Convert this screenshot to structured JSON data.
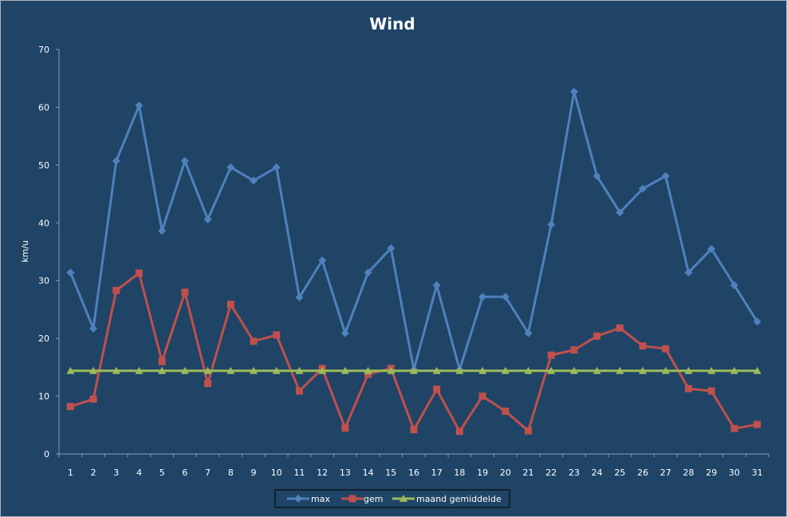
{
  "chart_data": {
    "type": "line",
    "title": "Wind",
    "xlabel": "",
    "ylabel": "km/u",
    "ylim": [
      0,
      70
    ],
    "yticks": [
      0,
      10,
      20,
      30,
      40,
      50,
      60,
      70
    ],
    "grid": false,
    "legend_position": "bottom",
    "categories": [
      "1",
      "2",
      "3",
      "4",
      "5",
      "6",
      "7",
      "8",
      "9",
      "10",
      "11",
      "12",
      "13",
      "14",
      "15",
      "16",
      "17",
      "18",
      "19",
      "20",
      "21",
      "22",
      "23",
      "24",
      "25",
      "26",
      "27",
      "28",
      "29",
      "30",
      "31"
    ],
    "series": [
      {
        "name": "max",
        "color": "#4f81bd",
        "marker": "diamond",
        "values": [
          31.4,
          21.7,
          50.7,
          60.3,
          38.6,
          50.7,
          40.6,
          49.6,
          47.3,
          49.6,
          27.1,
          33.5,
          20.9,
          31.4,
          35.6,
          14.6,
          29.2,
          14.6,
          27.2,
          27.2,
          20.9,
          39.7,
          62.7,
          48.1,
          41.8,
          45.9,
          48.1,
          31.4,
          35.5,
          29.2,
          22.9
        ]
      },
      {
        "name": "gem",
        "color": "#c0504d",
        "marker": "square",
        "values": [
          8.2,
          9.5,
          28.3,
          31.3,
          16.0,
          28.0,
          12.2,
          25.9,
          19.5,
          20.6,
          10.9,
          14.8,
          4.5,
          13.8,
          14.8,
          4.2,
          11.2,
          3.9,
          10.0,
          7.4,
          4.0,
          17.1,
          18.0,
          20.4,
          21.8,
          18.7,
          18.2,
          11.3,
          10.9,
          4.4,
          5.1
        ]
      },
      {
        "name": "maand gemiddelde",
        "color": "#9bbb59",
        "marker": "triangle",
        "values": [
          14.4,
          14.4,
          14.4,
          14.4,
          14.4,
          14.4,
          14.4,
          14.4,
          14.4,
          14.4,
          14.4,
          14.4,
          14.4,
          14.4,
          14.4,
          14.4,
          14.4,
          14.4,
          14.4,
          14.4,
          14.4,
          14.4,
          14.4,
          14.4,
          14.4,
          14.4,
          14.4,
          14.4,
          14.4,
          14.4,
          14.4
        ]
      }
    ]
  }
}
